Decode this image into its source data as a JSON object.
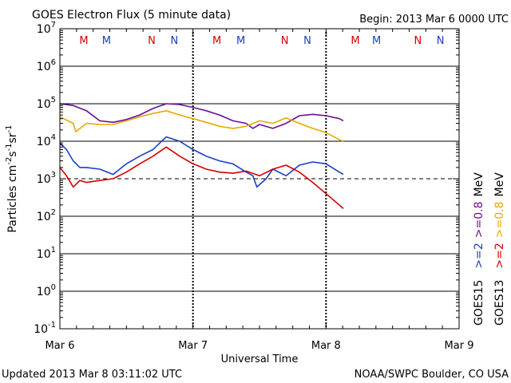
{
  "chart_data": {
    "type": "line",
    "title": "GOES Electron Flux (5 minute data)",
    "begin_label": "Begin: 2013 Mar 6 0000 UTC",
    "xlabel": "Universal Time",
    "ylabel": {
      "base": "Particles cm",
      "exp1": "-2",
      "mid1": "s",
      "exp2": "-1",
      "mid2": "sr",
      "exp3": "-1"
    },
    "updated_label": "Updated 2013 Mar  8 03:11:02 UTC",
    "credit_label": "NOAA/SWPC Boulder, CO USA",
    "x_unit": "days since 2013-03-06 00:00 UTC",
    "xlim": [
      0,
      3
    ],
    "x_ticks": [
      {
        "x": 0,
        "label": "Mar 6"
      },
      {
        "x": 1,
        "label": "Mar 7"
      },
      {
        "x": 2,
        "label": "Mar 8"
      },
      {
        "x": 3,
        "label": "Mar 9"
      }
    ],
    "y_scale": "log",
    "ylim_exp": [
      -1,
      7
    ],
    "y_ticks": [
      {
        "exp": 7,
        "base": "10",
        "sup": "7"
      },
      {
        "exp": 6,
        "base": "10",
        "sup": "6"
      },
      {
        "exp": 5,
        "base": "10",
        "sup": "5"
      },
      {
        "exp": 4,
        "base": "10",
        "sup": "4"
      },
      {
        "exp": 3,
        "base": "10",
        "sup": "3"
      },
      {
        "exp": 2,
        "base": "10",
        "sup": "2"
      },
      {
        "exp": 1,
        "base": "10",
        "sup": "1"
      },
      {
        "exp": 0,
        "base": "10",
        "sup": "0"
      },
      {
        "exp": -1,
        "base": "10",
        "sup": "-1"
      }
    ],
    "grid_exponents": [
      6,
      5,
      4,
      2,
      1,
      0
    ],
    "threshold_exponent": 3,
    "day_boundaries": [
      1,
      2
    ],
    "markers": [
      {
        "x": 0.18,
        "label": "M",
        "color": "#d40000"
      },
      {
        "x": 0.35,
        "label": "M",
        "color": "#1a3fc8"
      },
      {
        "x": 0.69,
        "label": "N",
        "color": "#d40000"
      },
      {
        "x": 0.86,
        "label": "N",
        "color": "#1a3fc8"
      },
      {
        "x": 1.18,
        "label": "M",
        "color": "#d40000"
      },
      {
        "x": 1.36,
        "label": "M",
        "color": "#1a3fc8"
      },
      {
        "x": 1.69,
        "label": "N",
        "color": "#d40000"
      },
      {
        "x": 1.86,
        "label": "N",
        "color": "#1a3fc8"
      },
      {
        "x": 2.22,
        "label": "M",
        "color": "#d40000"
      },
      {
        "x": 2.38,
        "label": "M",
        "color": "#1a3fc8"
      },
      {
        "x": 2.69,
        "label": "N",
        "color": "#d40000"
      },
      {
        "x": 2.86,
        "label": "N",
        "color": "#1a3fc8"
      }
    ],
    "legend": {
      "placement": "right",
      "columns": [
        {
          "name": "GOES15",
          "entries": [
            {
              "text": ">=2",
              "color": "#1a3fc8"
            },
            {
              "text": ">=0.8",
              "color": "#6a0d9a"
            },
            {
              "text": "MeV",
              "color": "#000000"
            }
          ]
        },
        {
          "name": "GOES13",
          "entries": [
            {
              "text": ">=2",
              "color": "#d40000"
            },
            {
              "text": ">=0.8",
              "color": "#e8a800"
            },
            {
              "text": "MeV",
              "color": "#000000"
            }
          ]
        }
      ]
    },
    "series": [
      {
        "name": "GOES15 >=0.8 MeV",
        "color": "#6a0d9a",
        "x": [
          0,
          0.1,
          0.2,
          0.3,
          0.4,
          0.5,
          0.6,
          0.7,
          0.8,
          0.9,
          1.0,
          1.1,
          1.2,
          1.3,
          1.4,
          1.45,
          1.5,
          1.6,
          1.7,
          1.8,
          1.9,
          2.0,
          2.1,
          2.13
        ],
        "y": [
          100000,
          90000,
          65000,
          35000,
          32000,
          38000,
          50000,
          75000,
          100000,
          95000,
          80000,
          65000,
          50000,
          35000,
          30000,
          22000,
          28000,
          22000,
          30000,
          48000,
          52000,
          48000,
          40000,
          35000
        ]
      },
      {
        "name": "GOES13 >=0.8 MeV",
        "color": "#e8a800",
        "x": [
          0,
          0.1,
          0.12,
          0.2,
          0.3,
          0.4,
          0.5,
          0.6,
          0.7,
          0.8,
          0.9,
          1.0,
          1.1,
          1.2,
          1.3,
          1.4,
          1.5,
          1.6,
          1.7,
          1.8,
          1.9,
          2.0,
          2.1,
          2.13
        ],
        "y": [
          45000,
          30000,
          18000,
          30000,
          28000,
          28000,
          35000,
          45000,
          55000,
          65000,
          50000,
          40000,
          32000,
          25000,
          22000,
          25000,
          35000,
          30000,
          42000,
          30000,
          22000,
          17000,
          11000,
          10000
        ]
      },
      {
        "name": "GOES15 >=2 MeV",
        "color": "#1a3fc8",
        "x": [
          0,
          0.05,
          0.1,
          0.15,
          0.2,
          0.3,
          0.4,
          0.5,
          0.6,
          0.7,
          0.75,
          0.8,
          0.9,
          1.0,
          1.1,
          1.2,
          1.3,
          1.4,
          1.45,
          1.48,
          1.55,
          1.6,
          1.7,
          1.8,
          1.9,
          2.0,
          2.1,
          2.13
        ],
        "y": [
          9000,
          6000,
          3000,
          2000,
          2000,
          1800,
          1300,
          2500,
          4000,
          6000,
          9000,
          13000,
          10000,
          6000,
          4000,
          3000,
          2500,
          1500,
          1200,
          600,
          1000,
          1800,
          1200,
          2300,
          2800,
          2500,
          1500,
          1300
        ]
      },
      {
        "name": "GOES13 >=2 MeV",
        "color": "#d40000",
        "x": [
          0,
          0.05,
          0.1,
          0.15,
          0.2,
          0.3,
          0.4,
          0.5,
          0.6,
          0.7,
          0.8,
          0.9,
          1.0,
          1.1,
          1.2,
          1.3,
          1.4,
          1.5,
          1.6,
          1.7,
          1.8,
          1.9,
          2.0,
          2.1,
          2.13
        ],
        "y": [
          2000,
          1200,
          600,
          900,
          800,
          900,
          1000,
          1500,
          2500,
          4000,
          7000,
          4000,
          2500,
          1800,
          1500,
          1400,
          1600,
          1200,
          1800,
          2300,
          1500,
          800,
          400,
          200,
          160
        ]
      }
    ]
  }
}
